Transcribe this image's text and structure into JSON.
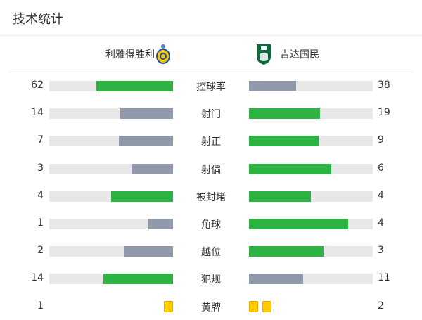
{
  "title": "技术统计",
  "teams": {
    "home": "利雅得胜利",
    "away": "吉达国民"
  },
  "colors": {
    "higher": "#2db344",
    "lower": "#8f99aa",
    "track": "#e8e8e8",
    "card": "#ffcc00"
  },
  "stats": [
    {
      "label": "控球率",
      "home": 62,
      "away": 38
    },
    {
      "label": "射门",
      "home": 14,
      "away": 19
    },
    {
      "label": "射正",
      "home": 7,
      "away": 9
    },
    {
      "label": "射偏",
      "home": 3,
      "away": 6
    },
    {
      "label": "被封堵",
      "home": 4,
      "away": 4
    },
    {
      "label": "角球",
      "home": 1,
      "away": 4
    },
    {
      "label": "越位",
      "home": 2,
      "away": 3
    },
    {
      "label": "犯规",
      "home": 14,
      "away": 11
    }
  ],
  "yellow_cards": {
    "label": "黄牌",
    "home": 1,
    "away": 2
  }
}
